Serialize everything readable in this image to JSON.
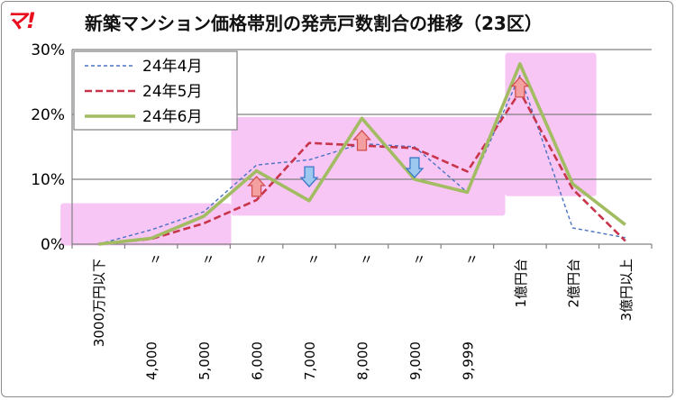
{
  "header": {
    "logo_text": "マ!",
    "title": "新築マンション価格帯別の発売戸数割合の推移（23区）"
  },
  "chart_data": {
    "type": "line",
    "title": "新築マンション価格帯別の発売戸数割合の推移（23区）",
    "xlabel": "",
    "ylabel": "",
    "ylim": [
      0,
      30
    ],
    "yticks": [
      "0%",
      "10%",
      "20%",
      "30%"
    ],
    "grid": "horizontal",
    "legend_position": "top-left",
    "categories": [
      "3000万円以下",
      "〃 4,000",
      "〃 5,000",
      "〃 6,000",
      "〃 7,000",
      "〃 8,000",
      "〃 9,000",
      "〃 9,999",
      "1億円台",
      "2億円台",
      "3億円以上"
    ],
    "tick_labels": [
      {
        "top": "",
        "bottom": "3000万円以下"
      },
      {
        "top": "〃",
        "bottom": "4,000"
      },
      {
        "top": "〃",
        "bottom": "5,000"
      },
      {
        "top": "〃",
        "bottom": "6,000"
      },
      {
        "top": "〃",
        "bottom": "7,000"
      },
      {
        "top": "〃",
        "bottom": "8,000"
      },
      {
        "top": "〃",
        "bottom": "9,000"
      },
      {
        "top": "〃",
        "bottom": "9,999"
      },
      {
        "top": "",
        "bottom": "1億円台"
      },
      {
        "top": "",
        "bottom": "2億円台"
      },
      {
        "top": "",
        "bottom": "3億円以上"
      }
    ],
    "series": [
      {
        "name": "24年4月",
        "color": "#4a72c4",
        "style": "dotted",
        "values": [
          0,
          2.2,
          5.0,
          12.2,
          13.0,
          15.5,
          15.0,
          8.0,
          26.0,
          2.5,
          1.0
        ]
      },
      {
        "name": "24年5月",
        "color": "#c8344a",
        "style": "dashed",
        "values": [
          0,
          0.8,
          3.2,
          6.8,
          15.6,
          15.2,
          14.8,
          11.2,
          23.5,
          8.5,
          0.5
        ]
      },
      {
        "name": "24年6月",
        "color": "#a2bc62",
        "style": "solid",
        "values": [
          0,
          0.9,
          4.3,
          11.3,
          6.7,
          19.4,
          10.0,
          8.0,
          27.8,
          9.3,
          3.0
        ]
      }
    ],
    "annotations": [
      {
        "type": "up-arrow",
        "index": 3,
        "value": 8.9,
        "color": "#f4a0a0"
      },
      {
        "type": "down-arrow",
        "index": 4,
        "value": 10.4,
        "color": "#9cc8f0"
      },
      {
        "type": "up-arrow",
        "index": 5,
        "value": 16.0,
        "color": "#f4a0a0"
      },
      {
        "type": "down-arrow",
        "index": 6,
        "value": 11.8,
        "color": "#9cc8f0"
      },
      {
        "type": "up-arrow",
        "index": 8,
        "value": 24.2,
        "color": "#f4a0a0"
      }
    ],
    "highlight_color": "#f7c6f4"
  }
}
